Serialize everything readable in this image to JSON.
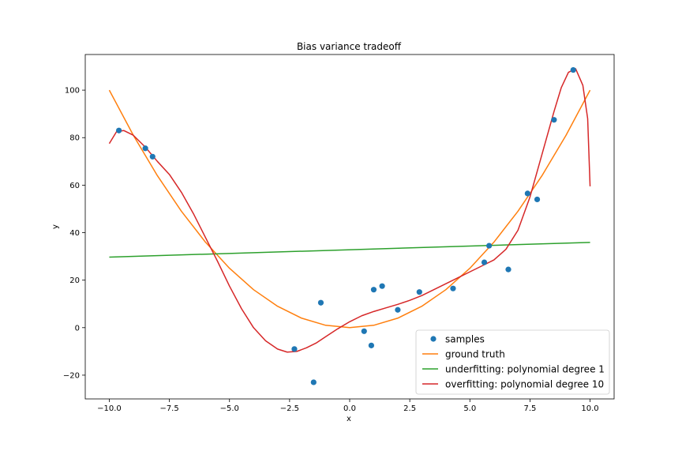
{
  "chart_data": {
    "type": "scatter",
    "title": "Bias variance tradeoff",
    "xlabel": "x",
    "ylabel": "y",
    "xlim": [
      -11,
      11
    ],
    "ylim": [
      -30,
      115
    ],
    "x_ticks": [
      -10.0,
      -7.5,
      -5.0,
      -2.5,
      0.0,
      2.5,
      5.0,
      7.5,
      10.0
    ],
    "x_tick_labels": [
      "−10.0",
      "−7.5",
      "−5.0",
      "−2.5",
      "0.0",
      "2.5",
      "5.0",
      "7.5",
      "10.0"
    ],
    "y_ticks": [
      -20,
      0,
      20,
      40,
      60,
      80,
      100
    ],
    "y_tick_labels": [
      "−20",
      "0",
      "20",
      "40",
      "60",
      "80",
      "100"
    ],
    "grid": false,
    "legend_position": "bottom-right",
    "series": [
      {
        "name": "samples",
        "kind": "scatter",
        "color": "#1f77b4",
        "points": [
          [
            -9.6,
            83
          ],
          [
            -8.5,
            75.5
          ],
          [
            -8.2,
            72
          ],
          [
            -2.3,
            -9
          ],
          [
            -1.5,
            -23
          ],
          [
            -1.2,
            10.5
          ],
          [
            0.6,
            -1.5
          ],
          [
            0.9,
            -7.5
          ],
          [
            1.0,
            16
          ],
          [
            1.35,
            17.5
          ],
          [
            2.0,
            7.5
          ],
          [
            2.9,
            15
          ],
          [
            4.3,
            16.5
          ],
          [
            5.6,
            27.5
          ],
          [
            5.8,
            34.5
          ],
          [
            6.6,
            24.5
          ],
          [
            7.4,
            56.5
          ],
          [
            7.8,
            54
          ],
          [
            8.5,
            87.5
          ],
          [
            9.3,
            108.5
          ]
        ]
      },
      {
        "name": "ground truth",
        "kind": "line",
        "color": "#ff7f0e",
        "points": [
          [
            -10,
            100
          ],
          [
            -9,
            81
          ],
          [
            -8,
            64
          ],
          [
            -7,
            49
          ],
          [
            -6,
            36
          ],
          [
            -5,
            25
          ],
          [
            -4,
            16
          ],
          [
            -3,
            9
          ],
          [
            -2,
            4
          ],
          [
            -1,
            1
          ],
          [
            0,
            0
          ],
          [
            1,
            1
          ],
          [
            2,
            4
          ],
          [
            3,
            9
          ],
          [
            4,
            16
          ],
          [
            5,
            25
          ],
          [
            6,
            36
          ],
          [
            7,
            49
          ],
          [
            8,
            64
          ],
          [
            9,
            81
          ],
          [
            10,
            100
          ]
        ]
      },
      {
        "name": "underfitting: polynomial degree 1",
        "kind": "line",
        "color": "#2ca02c",
        "points": [
          [
            -10,
            29.7
          ],
          [
            10,
            35.9
          ]
        ]
      },
      {
        "name": "overfitting: polynomial degree 10",
        "kind": "line",
        "color": "#d62728",
        "points": [
          [
            -10,
            77.5
          ],
          [
            -9.7,
            82.5
          ],
          [
            -9.4,
            83
          ],
          [
            -9,
            81
          ],
          [
            -8.5,
            76
          ],
          [
            -8,
            70
          ],
          [
            -7.5,
            64.5
          ],
          [
            -7,
            57
          ],
          [
            -6.5,
            48
          ],
          [
            -6,
            38
          ],
          [
            -5.5,
            28
          ],
          [
            -5,
            17.5
          ],
          [
            -4.5,
            8
          ],
          [
            -4,
            0
          ],
          [
            -3.5,
            -5.5
          ],
          [
            -3,
            -9
          ],
          [
            -2.6,
            -10.3
          ],
          [
            -2.2,
            -10
          ],
          [
            -1.8,
            -8.5
          ],
          [
            -1.4,
            -6.5
          ],
          [
            -1,
            -3.8
          ],
          [
            -0.5,
            -0.5
          ],
          [
            0,
            2.5
          ],
          [
            0.5,
            5
          ],
          [
            1,
            6.8
          ],
          [
            1.5,
            8.3
          ],
          [
            2,
            9.8
          ],
          [
            2.5,
            11.5
          ],
          [
            3,
            13.5
          ],
          [
            3.5,
            16
          ],
          [
            4,
            18.5
          ],
          [
            4.5,
            21
          ],
          [
            5,
            23.5
          ],
          [
            5.5,
            26
          ],
          [
            6,
            28.5
          ],
          [
            6.5,
            33
          ],
          [
            7,
            41
          ],
          [
            7.5,
            55
          ],
          [
            8,
            73
          ],
          [
            8.5,
            91
          ],
          [
            8.8,
            101
          ],
          [
            9.1,
            107.5
          ],
          [
            9.4,
            109
          ],
          [
            9.7,
            102
          ],
          [
            9.9,
            88
          ],
          [
            10,
            59.5
          ]
        ]
      }
    ]
  }
}
